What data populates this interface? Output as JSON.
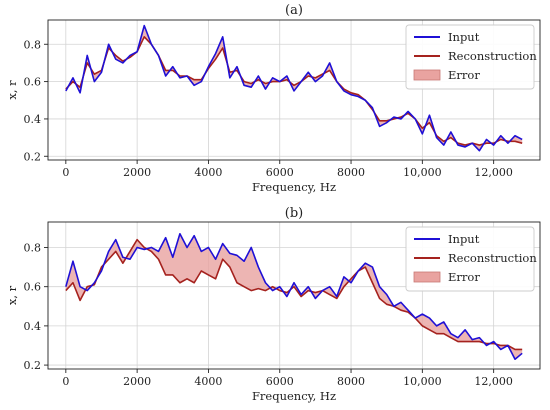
{
  "chart_data": [
    {
      "type": "line",
      "panel_label": "(a)",
      "xlabel": "Frequency, Hz",
      "ylabel": "x, r",
      "xlim": [
        -500,
        13300
      ],
      "ylim": [
        0.18,
        0.93
      ],
      "xticks": [
        0,
        2000,
        4000,
        6000,
        8000,
        10000,
        12000
      ],
      "xtick_labels": [
        "0",
        "2000",
        "4000",
        "6000",
        "8000",
        "10,000",
        "12,000"
      ],
      "yticks": [
        0.2,
        0.4,
        0.6,
        0.8
      ],
      "ytick_labels": [
        "0.2",
        "0.4",
        "0.6",
        "0.8"
      ],
      "grid": true,
      "legend_position": "top-right",
      "legend": [
        "Input",
        "Reconstruction",
        "Error"
      ],
      "x": [
        0,
        200,
        400,
        600,
        800,
        1000,
        1200,
        1400,
        1600,
        1800,
        2000,
        2200,
        2400,
        2600,
        2800,
        3000,
        3200,
        3400,
        3600,
        3800,
        4000,
        4200,
        4400,
        4600,
        4800,
        5000,
        5200,
        5400,
        5600,
        5800,
        6000,
        6200,
        6400,
        6600,
        6800,
        7000,
        7200,
        7400,
        7600,
        7800,
        8000,
        8200,
        8400,
        8600,
        8800,
        9000,
        9200,
        9400,
        9600,
        9800,
        10000,
        10200,
        10400,
        10600,
        10800,
        11000,
        11200,
        11400,
        11600,
        11800,
        12000,
        12200,
        12400,
        12600,
        12800
      ],
      "series": [
        {
          "name": "Input",
          "color": "#1f10d6",
          "values": [
            0.55,
            0.62,
            0.54,
            0.74,
            0.6,
            0.65,
            0.8,
            0.72,
            0.7,
            0.74,
            0.76,
            0.9,
            0.8,
            0.74,
            0.63,
            0.68,
            0.62,
            0.63,
            0.58,
            0.6,
            0.68,
            0.75,
            0.84,
            0.62,
            0.68,
            0.58,
            0.57,
            0.63,
            0.56,
            0.62,
            0.6,
            0.63,
            0.55,
            0.6,
            0.65,
            0.6,
            0.63,
            0.7,
            0.6,
            0.55,
            0.53,
            0.52,
            0.5,
            0.46,
            0.36,
            0.38,
            0.41,
            0.4,
            0.44,
            0.4,
            0.32,
            0.42,
            0.3,
            0.26,
            0.33,
            0.26,
            0.25,
            0.27,
            0.23,
            0.29,
            0.26,
            0.31,
            0.27,
            0.31,
            0.29
          ]
        },
        {
          "name": "Reconstruction",
          "color": "#a5221e",
          "values": [
            0.56,
            0.6,
            0.57,
            0.7,
            0.64,
            0.66,
            0.78,
            0.74,
            0.71,
            0.73,
            0.76,
            0.84,
            0.8,
            0.74,
            0.66,
            0.66,
            0.63,
            0.63,
            0.61,
            0.61,
            0.67,
            0.72,
            0.78,
            0.65,
            0.66,
            0.6,
            0.59,
            0.61,
            0.59,
            0.6,
            0.6,
            0.61,
            0.58,
            0.6,
            0.63,
            0.62,
            0.64,
            0.66,
            0.6,
            0.56,
            0.54,
            0.53,
            0.5,
            0.45,
            0.39,
            0.39,
            0.4,
            0.41,
            0.43,
            0.4,
            0.35,
            0.38,
            0.31,
            0.28,
            0.3,
            0.27,
            0.26,
            0.27,
            0.26,
            0.27,
            0.27,
            0.29,
            0.28,
            0.28,
            0.27
          ]
        }
      ]
    },
    {
      "type": "line",
      "panel_label": "(b)",
      "xlabel": "Frequency, Hz",
      "ylabel": "x, r",
      "xlim": [
        -500,
        13300
      ],
      "ylim": [
        0.18,
        0.93
      ],
      "xticks": [
        0,
        2000,
        4000,
        6000,
        8000,
        10000,
        12000
      ],
      "xtick_labels": [
        "0",
        "2000",
        "4000",
        "6000",
        "8000",
        "10,000",
        "12,000"
      ],
      "yticks": [
        0.2,
        0.4,
        0.6,
        0.8
      ],
      "ytick_labels": [
        "0.2",
        "0.4",
        "0.6",
        "0.8"
      ],
      "grid": true,
      "legend_position": "top-right",
      "legend": [
        "Input",
        "Reconstruction",
        "Error"
      ],
      "x": [
        0,
        200,
        400,
        600,
        800,
        1000,
        1200,
        1400,
        1600,
        1800,
        2000,
        2200,
        2400,
        2600,
        2800,
        3000,
        3200,
        3400,
        3600,
        3800,
        4000,
        4200,
        4400,
        4600,
        4800,
        5000,
        5200,
        5400,
        5600,
        5800,
        6000,
        6200,
        6400,
        6600,
        6800,
        7000,
        7200,
        7400,
        7600,
        7800,
        8000,
        8200,
        8400,
        8600,
        8800,
        9000,
        9200,
        9400,
        9600,
        9800,
        10000,
        10200,
        10400,
        10600,
        10800,
        11000,
        11200,
        11400,
        11600,
        11800,
        12000,
        12200,
        12400,
        12600,
        12800
      ],
      "series": [
        {
          "name": "Input",
          "color": "#1f10d6",
          "values": [
            0.6,
            0.73,
            0.6,
            0.58,
            0.62,
            0.68,
            0.78,
            0.84,
            0.75,
            0.74,
            0.8,
            0.79,
            0.8,
            0.78,
            0.85,
            0.75,
            0.87,
            0.8,
            0.86,
            0.78,
            0.8,
            0.74,
            0.82,
            0.77,
            0.76,
            0.73,
            0.8,
            0.7,
            0.62,
            0.58,
            0.6,
            0.55,
            0.62,
            0.56,
            0.6,
            0.54,
            0.58,
            0.6,
            0.55,
            0.65,
            0.62,
            0.68,
            0.72,
            0.7,
            0.6,
            0.56,
            0.5,
            0.52,
            0.48,
            0.44,
            0.46,
            0.44,
            0.4,
            0.42,
            0.36,
            0.34,
            0.38,
            0.33,
            0.34,
            0.3,
            0.32,
            0.28,
            0.3,
            0.23,
            0.26
          ]
        },
        {
          "name": "Reconstruction",
          "color": "#a5221e",
          "values": [
            0.58,
            0.62,
            0.53,
            0.6,
            0.61,
            0.7,
            0.74,
            0.78,
            0.72,
            0.78,
            0.84,
            0.8,
            0.78,
            0.74,
            0.66,
            0.66,
            0.62,
            0.64,
            0.62,
            0.68,
            0.66,
            0.64,
            0.74,
            0.7,
            0.62,
            0.6,
            0.58,
            0.59,
            0.58,
            0.6,
            0.58,
            0.57,
            0.6,
            0.55,
            0.58,
            0.57,
            0.58,
            0.56,
            0.54,
            0.6,
            0.64,
            0.68,
            0.7,
            0.62,
            0.54,
            0.51,
            0.5,
            0.48,
            0.47,
            0.44,
            0.4,
            0.38,
            0.36,
            0.36,
            0.34,
            0.32,
            0.32,
            0.32,
            0.32,
            0.31,
            0.31,
            0.3,
            0.3,
            0.28,
            0.28
          ]
        }
      ]
    }
  ],
  "error_fill_color": "#e9a3a0"
}
